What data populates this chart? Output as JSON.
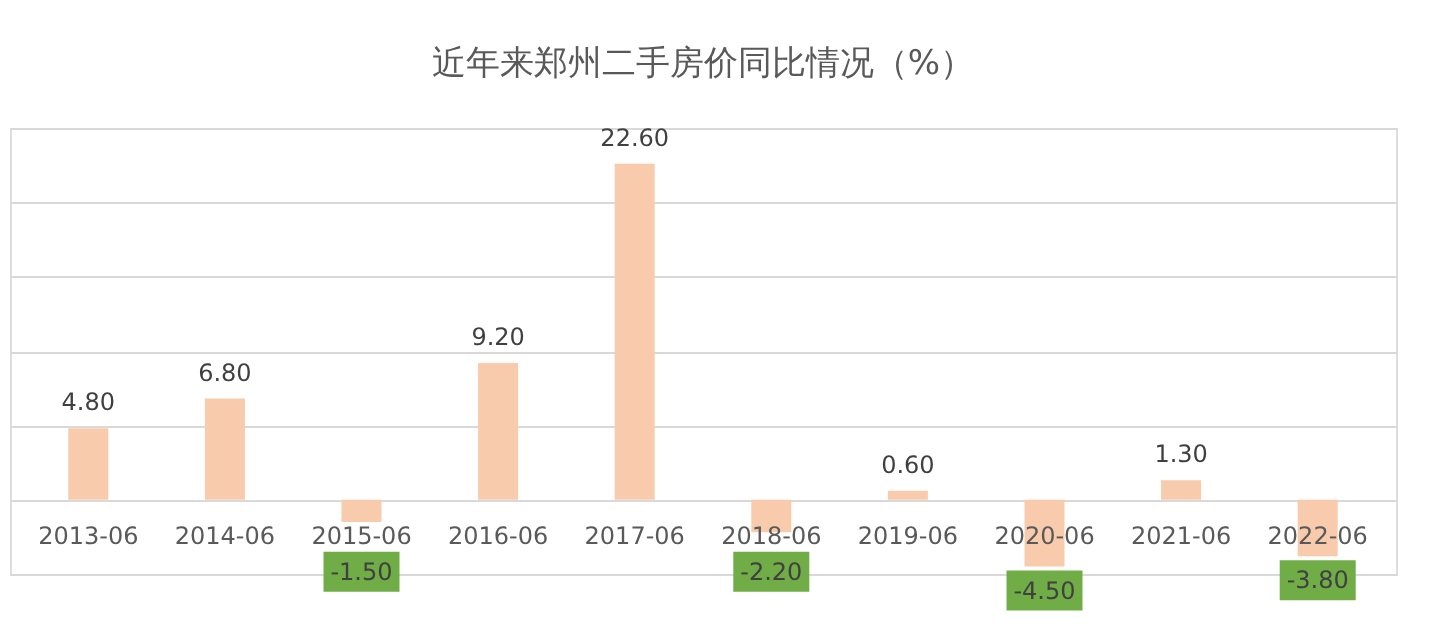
{
  "chart_data": {
    "type": "bar",
    "title": "近年来郑州二手房价同比情况（%）",
    "categories": [
      "2013-06",
      "2014-06",
      "2015-06",
      "2016-06",
      "2017-06",
      "2018-06",
      "2019-06",
      "2020-06",
      "2021-06",
      "2022-06"
    ],
    "values": [
      4.8,
      6.8,
      -1.5,
      9.2,
      22.6,
      -2.2,
      0.6,
      -4.5,
      1.3,
      -3.8
    ],
    "value_labels": [
      "4.80",
      "6.80",
      "-1.50",
      "9.20",
      "22.60",
      "-2.20",
      "0.60",
      "-4.50",
      "1.30",
      "-3.80"
    ],
    "color": "#f8cbad",
    "ylim": [
      -5,
      25
    ],
    "yticks": [
      {
        "value": -5,
        "label": null
      },
      {
        "value": 0,
        "label": null
      },
      {
        "value": 5,
        "label": null
      },
      {
        "value": 10,
        "label": null
      },
      {
        "value": 15,
        "label": null
      },
      {
        "value": 20,
        "label": null
      },
      {
        "value": 25,
        "label": null
      }
    ],
    "grid": "y",
    "tick_labels": "x"
  }
}
